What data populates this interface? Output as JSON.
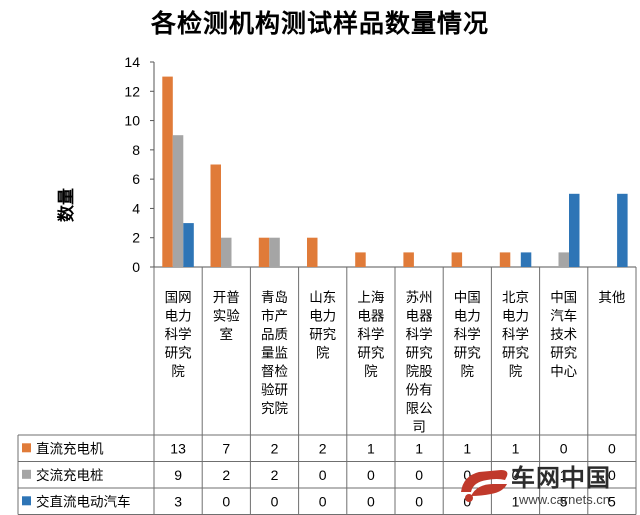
{
  "chart_data": {
    "type": "bar",
    "title": "各检测机构测试样品数量情况",
    "ylabel": "数量",
    "xlabel": "",
    "ylim": [
      0,
      14
    ],
    "yticks": [
      0,
      2,
      4,
      6,
      8,
      10,
      12,
      14
    ],
    "grid": false,
    "legend": "table-bottom",
    "categories": [
      "国网电力科学研究院",
      "开普实验室",
      "青岛市产品质量监督检验研究院",
      "山东电力研究院",
      "上海电器科学研究院",
      "苏州电器科学研究院股份有限公司",
      "中国电力科学研究院",
      "北京电力科学研究院",
      "中国汽车技术研究中心",
      "其他"
    ],
    "category_lines": [
      [
        "国网",
        "电力",
        "科学",
        "研究",
        "院"
      ],
      [
        "开普",
        "实验",
        "室"
      ],
      [
        "青岛",
        "市产",
        "品质",
        "量监",
        "督检",
        "验研",
        "究院"
      ],
      [
        "山东",
        "电力",
        "研究",
        "院"
      ],
      [
        "上海",
        "电器",
        "科学",
        "研究",
        "院"
      ],
      [
        "苏州",
        "电器",
        "科学",
        "研究",
        "院股",
        "份有",
        "限公",
        "司"
      ],
      [
        "中国",
        "电力",
        "科学",
        "研究",
        "院"
      ],
      [
        "北京",
        "电力",
        "科学",
        "研究",
        "院"
      ],
      [
        "中国",
        "汽车",
        "技术",
        "研究",
        "中心"
      ],
      [
        "其他"
      ]
    ],
    "series": [
      {
        "name": "直流充电机",
        "color": "#e07b39",
        "values": [
          13,
          7,
          2,
          2,
          1,
          1,
          1,
          1,
          0,
          0
        ]
      },
      {
        "name": "交流充电桩",
        "color": "#a5a5a5",
        "values": [
          9,
          2,
          2,
          0,
          0,
          0,
          0,
          0,
          1,
          0
        ]
      },
      {
        "name": "交直流电动汽车",
        "color": "#2e75b6",
        "values": [
          3,
          0,
          0,
          0,
          0,
          0,
          0,
          1,
          5,
          5
        ]
      }
    ]
  },
  "watermark": {
    "name": "车网中国",
    "url": "www.carnets.cn"
  }
}
